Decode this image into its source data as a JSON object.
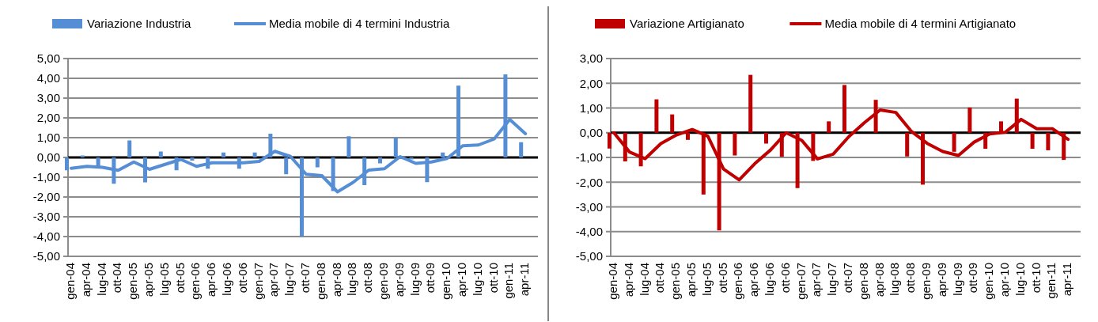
{
  "chart_data": [
    {
      "type": "bar",
      "categories": [
        "gen-04",
        "apr-04",
        "lug-04",
        "ott-04",
        "gen-05",
        "apr-05",
        "lug-05",
        "ott-05",
        "gen-06",
        "apr-06",
        "lug-06",
        "ott-06",
        "gen-07",
        "apr-07",
        "lug-07",
        "ott-07",
        "gen-08",
        "apr-08",
        "lug-08",
        "ott-08",
        "gen-09",
        "apr-09",
        "lug-09",
        "ott-09",
        "gen-10",
        "apr-10",
        "lug-10",
        "ott-10",
        "gen-11",
        "apr-11"
      ],
      "series": [
        {
          "name": "Variazione Industria",
          "color": "#558ed5",
          "values": [
            -0.65,
            0.1,
            -0.45,
            -1.33,
            0.86,
            -1.26,
            0.3,
            -0.65,
            -0.16,
            -0.57,
            0.25,
            -0.57,
            0.25,
            1.2,
            -0.85,
            -4.0,
            -0.5,
            -1.7,
            1.07,
            -1.4,
            -0.3,
            1.0,
            -0.1,
            -1.25,
            0.25,
            3.63,
            null,
            null,
            4.2,
            0.77
          ]
        },
        {
          "name": "Media mobile di 4 termini Industria",
          "type": "line",
          "color": "#558ed5",
          "values": [
            -0.55,
            -0.45,
            -0.5,
            -0.65,
            -0.23,
            -0.6,
            -0.35,
            -0.1,
            -0.45,
            -0.27,
            -0.27,
            -0.27,
            -0.2,
            0.31,
            0.05,
            -0.85,
            -0.92,
            -1.74,
            -1.26,
            -0.64,
            -0.57,
            0.04,
            -0.3,
            -0.23,
            -0.05,
            0.59,
            0.63,
            0.93,
            1.92,
            1.2
          ]
        }
      ],
      "ylim": [
        -5,
        5
      ],
      "yticks": [
        {
          "value": -5,
          "label": "-5,00"
        },
        {
          "value": -4,
          "label": "-4,00"
        },
        {
          "value": -3,
          "label": "-3,00"
        },
        {
          "value": -2,
          "label": "-2,00"
        },
        {
          "value": -1,
          "label": "-1,00"
        },
        {
          "value": 0,
          "label": "0,00"
        },
        {
          "value": 1,
          "label": "1,00"
        },
        {
          "value": 2,
          "label": "2,00"
        },
        {
          "value": 3,
          "label": "3,00"
        },
        {
          "value": 4,
          "label": "4,00"
        },
        {
          "value": 5,
          "label": "5,00"
        }
      ],
      "grid": "y",
      "legend": "top"
    },
    {
      "type": "bar",
      "categories": [
        "gen-04",
        "apr-04",
        "lug-04",
        "ott-04",
        "gen-05",
        "apr-05",
        "lug-05",
        "ott-05",
        "gen-06",
        "apr-06",
        "lug-06",
        "ott-06",
        "gen-07",
        "apr-07",
        "lug-07",
        "ott-07",
        "gen-08",
        "apr-08",
        "lug-08",
        "ott-08",
        "gen-09",
        "apr-09",
        "lug-09",
        "ott-09",
        "gen-10",
        "apr-10",
        "lug-10",
        "ott-10",
        "gen-11",
        "apr-11"
      ],
      "series": [
        {
          "name": "Variazione Artigianato",
          "color": "#c00000",
          "values": [
            -0.64,
            -1.16,
            -1.36,
            1.35,
            0.74,
            -0.29,
            -2.5,
            -3.95,
            -0.92,
            2.34,
            -0.44,
            -0.97,
            -2.24,
            -1.14,
            0.46,
            1.93,
            null,
            1.33,
            null,
            -0.96,
            -2.1,
            null,
            -0.77,
            1.02,
            -0.65,
            0.46,
            1.38,
            -0.65,
            -0.71,
            -1.1
          ]
        },
        {
          "name": "Media mobile di 4 termini Artigianato",
          "type": "line",
          "color": "#c00000",
          "values": [
            0.0,
            -0.78,
            -1.05,
            -0.44,
            -0.09,
            0.13,
            -0.14,
            -1.47,
            -1.91,
            -1.25,
            -0.7,
            0.0,
            -0.31,
            -1.06,
            -0.87,
            -0.16,
            0.41,
            0.92,
            0.82,
            0.05,
            -0.43,
            -0.76,
            -0.92,
            -0.38,
            -0.05,
            0.02,
            0.54,
            0.16,
            0.16,
            -0.27
          ]
        }
      ],
      "ylim": [
        -5,
        3
      ],
      "yticks": [
        {
          "value": -5,
          "label": "-5,00"
        },
        {
          "value": -4,
          "label": "-4,00"
        },
        {
          "value": -3,
          "label": "-3,00"
        },
        {
          "value": -2,
          "label": "-2,00"
        },
        {
          "value": -1,
          "label": "-1,00"
        },
        {
          "value": 0,
          "label": "0,00"
        },
        {
          "value": 1,
          "label": "1,00"
        },
        {
          "value": 2,
          "label": "2,00"
        },
        {
          "value": 3,
          "label": "3,00"
        }
      ],
      "grid": "y",
      "legend": "top"
    }
  ]
}
